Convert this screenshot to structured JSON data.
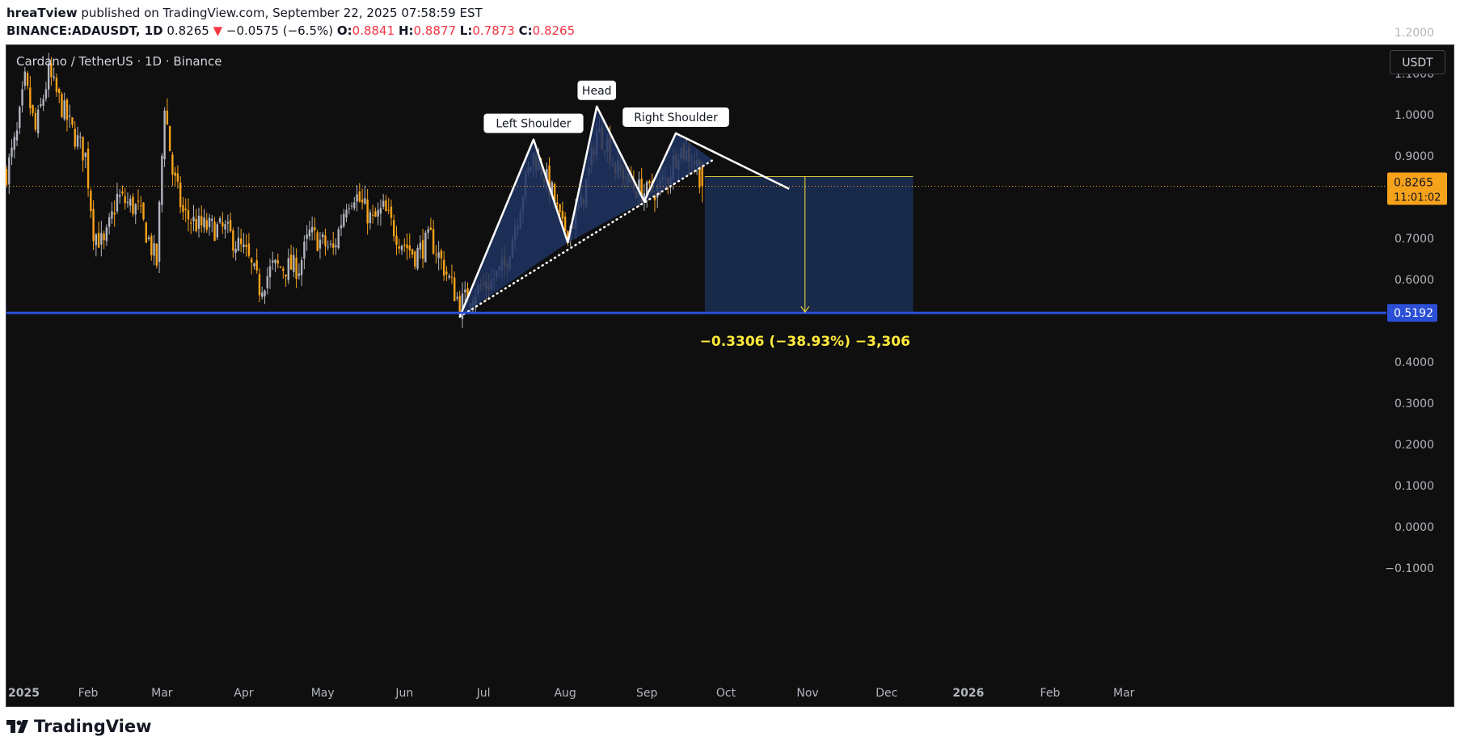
{
  "header": {
    "author": "hreaTview",
    "published_text": "published on TradingView.com, September 22, 2025 07:58:59 EST",
    "symbol": "BINANCE:ADAUSDT, 1D",
    "last": "0.8265",
    "arrow": "▼",
    "change": "−0.0575 (−6.5%)",
    "o_label": "O:",
    "o_value": "0.8841",
    "h_label": "H:",
    "h_value": "0.8877",
    "l_label": "L:",
    "l_value": "0.7873",
    "c_label": "C:",
    "c_value": "0.8265"
  },
  "chart_title": "Cardano / TetherUS · 1D · Binance",
  "currency": "USDT",
  "footer": {
    "brand": "TradingView",
    "logo_icon": "tradingview-logo-icon"
  },
  "colors": {
    "background": "#0f0f0f",
    "candle_up": "#b2b5be",
    "candle_down": "#f7a21b",
    "pattern_fill": "#1e3463",
    "support_line": "#2b4fd6",
    "price_label": "#f7a21b",
    "target_text": "#ffea3b"
  },
  "chart_data": {
    "type": "candlestick",
    "symbol": "ADAUSDT",
    "interval": "1D",
    "y_axis": {
      "ticks": [
        "1.2000",
        "1.1000",
        "1.0000",
        "0.9000",
        "0.7000",
        "0.6000",
        "0.4000",
        "0.3000",
        "0.2000",
        "0.1000",
        "0.0000",
        "−0.1000"
      ],
      "tick_values": [
        1.2,
        1.1,
        1.0,
        0.9,
        0.7,
        0.6,
        0.4,
        0.3,
        0.2,
        0.1,
        0.0,
        -0.1
      ],
      "range": [
        -0.17,
        1.3
      ]
    },
    "x_axis": {
      "labels": [
        "2025",
        "Feb",
        "Mar",
        "Apr",
        "May",
        "Jun",
        "Jul",
        "Aug",
        "Sep",
        "Oct",
        "Nov",
        "Dec",
        "2026",
        "Feb",
        "Mar"
      ],
      "dates": [
        "2025-01-01",
        "2025-02-01",
        "2025-03-01",
        "2025-04-01",
        "2025-05-01",
        "2025-06-01",
        "2025-07-01",
        "2025-08-01",
        "2025-09-01",
        "2025-10-01",
        "2025-11-01",
        "2025-12-01",
        "2026-01-01",
        "2026-02-01",
        "2026-03-01"
      ],
      "bold": [
        "2025",
        "2026"
      ]
    },
    "price_path": [
      [
        "2025-01-01",
        0.86
      ],
      [
        "2025-01-05",
        0.95
      ],
      [
        "2025-01-08",
        1.08
      ],
      [
        "2025-01-12",
        0.96
      ],
      [
        "2025-01-17",
        1.1
      ],
      [
        "2025-01-20",
        1.05
      ],
      [
        "2025-01-26",
        0.96
      ],
      [
        "2025-01-31",
        0.9
      ],
      [
        "2025-02-03",
        0.72
      ],
      [
        "2025-02-07",
        0.68
      ],
      [
        "2025-02-12",
        0.8
      ],
      [
        "2025-02-20",
        0.77
      ],
      [
        "2025-02-27",
        0.64
      ],
      [
        "2025-03-02",
        1.03
      ],
      [
        "2025-03-05",
        0.86
      ],
      [
        "2025-03-09",
        0.76
      ],
      [
        "2025-03-15",
        0.73
      ],
      [
        "2025-03-25",
        0.72
      ],
      [
        "2025-04-02",
        0.66
      ],
      [
        "2025-04-07",
        0.58
      ],
      [
        "2025-04-12",
        0.63
      ],
      [
        "2025-04-22",
        0.63
      ],
      [
        "2025-04-26",
        0.71
      ],
      [
        "2025-05-05",
        0.67
      ],
      [
        "2025-05-10",
        0.79
      ],
      [
        "2025-05-13",
        0.81
      ],
      [
        "2025-05-20",
        0.74
      ],
      [
        "2025-05-24",
        0.77
      ],
      [
        "2025-05-30",
        0.7
      ],
      [
        "2025-06-05",
        0.66
      ],
      [
        "2025-06-11",
        0.7
      ],
      [
        "2025-06-16",
        0.63
      ],
      [
        "2025-06-22",
        0.54
      ],
      [
        "2025-06-27",
        0.57
      ],
      [
        "2025-07-03",
        0.59
      ],
      [
        "2025-07-09",
        0.63
      ],
      [
        "2025-07-13",
        0.73
      ],
      [
        "2025-07-17",
        0.84
      ],
      [
        "2025-07-20",
        0.9
      ],
      [
        "2025-07-23",
        0.87
      ],
      [
        "2025-07-27",
        0.81
      ],
      [
        "2025-07-31",
        0.72
      ],
      [
        "2025-08-03",
        0.73
      ],
      [
        "2025-08-07",
        0.78
      ],
      [
        "2025-08-10",
        0.86
      ],
      [
        "2025-08-13",
        0.96
      ],
      [
        "2025-08-17",
        0.93
      ],
      [
        "2025-08-20",
        0.87
      ],
      [
        "2025-08-24",
        0.85
      ],
      [
        "2025-08-28",
        0.82
      ],
      [
        "2025-09-01",
        0.81
      ],
      [
        "2025-09-05",
        0.82
      ],
      [
        "2025-09-09",
        0.85
      ],
      [
        "2025-09-13",
        0.92
      ],
      [
        "2025-09-17",
        0.9
      ],
      [
        "2025-09-20",
        0.88
      ],
      [
        "2025-09-22",
        0.8265
      ]
    ],
    "pattern": {
      "name": "head and shoulders",
      "labels": [
        "Left Shoulder",
        "Head",
        "Right Shoulder"
      ],
      "points": [
        [
          "2025-06-22",
          0.51
        ],
        [
          "2025-07-20",
          0.94
        ],
        [
          "2025-08-02",
          0.69
        ],
        [
          "2025-08-13",
          1.02
        ],
        [
          "2025-08-31",
          0.79
        ],
        [
          "2025-09-12",
          0.955
        ],
        [
          "2025-10-25",
          0.82
        ]
      ],
      "neckline": [
        [
          "2025-06-22",
          0.51
        ],
        [
          "2025-09-26",
          0.89
        ]
      ]
    },
    "support": {
      "value": 0.5192,
      "label": "0.5192"
    },
    "current_price": {
      "value": 0.8265,
      "label": "0.8265",
      "countdown": "11:01:02"
    },
    "projection": {
      "from_date": "2025-09-23",
      "to_date": "2025-12-11",
      "top": 0.85,
      "bottom": 0.5192,
      "arrow_date": "2025-10-31",
      "label": "−0.3306 (−38.93%) −3,306"
    },
    "grid": false,
    "legend": "none"
  }
}
